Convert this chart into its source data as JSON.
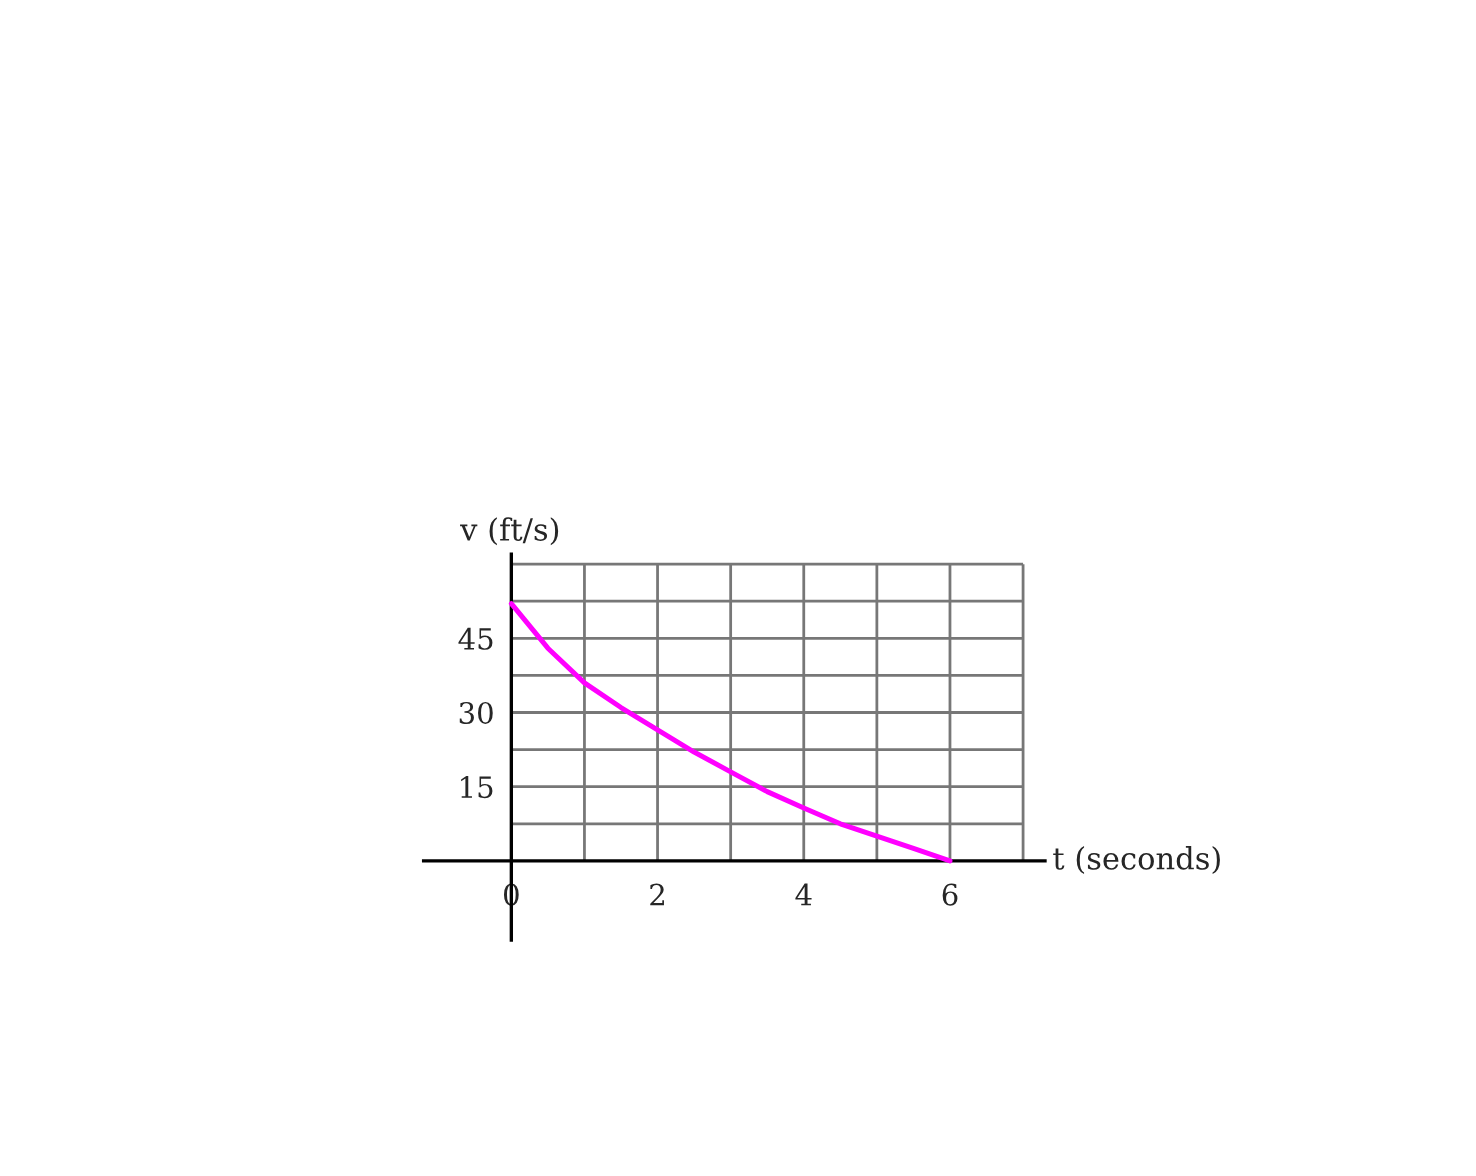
{
  "chart_data": {
    "type": "line",
    "xlabel": "t (seconds)",
    "ylabel": "v (ft/s)",
    "x": [
      0,
      0.5,
      1,
      1.5,
      2,
      2.5,
      3,
      3.5,
      4,
      4.5,
      5,
      5.5,
      6
    ],
    "series": [
      {
        "color": "#ff00ff",
        "values": [
          52,
          43,
          36,
          31,
          26.5,
          22,
          18,
          14,
          10.7,
          7.5,
          5,
          2.5,
          0
        ]
      }
    ],
    "xlim": [
      -1.2,
      7.3
    ],
    "ylim": [
      -16,
      62
    ],
    "xticks": [
      0,
      {
        "value": 1,
        "label": null
      },
      2,
      {
        "value": 3,
        "label": null
      },
      4,
      {
        "value": 5,
        "label": null
      },
      6,
      {
        "value": 7,
        "label": null
      }
    ],
    "yticks": [
      {
        "value": 0,
        "label": null
      },
      {
        "value": 7.5,
        "label": null
      },
      15,
      {
        "value": 22.5,
        "label": null
      },
      30,
      {
        "value": 37.5,
        "label": null
      },
      45,
      {
        "value": 52.5,
        "label": null
      },
      {
        "value": 60,
        "label": null
      }
    ],
    "grid": true,
    "line_style": "solid",
    "marker": "none"
  }
}
